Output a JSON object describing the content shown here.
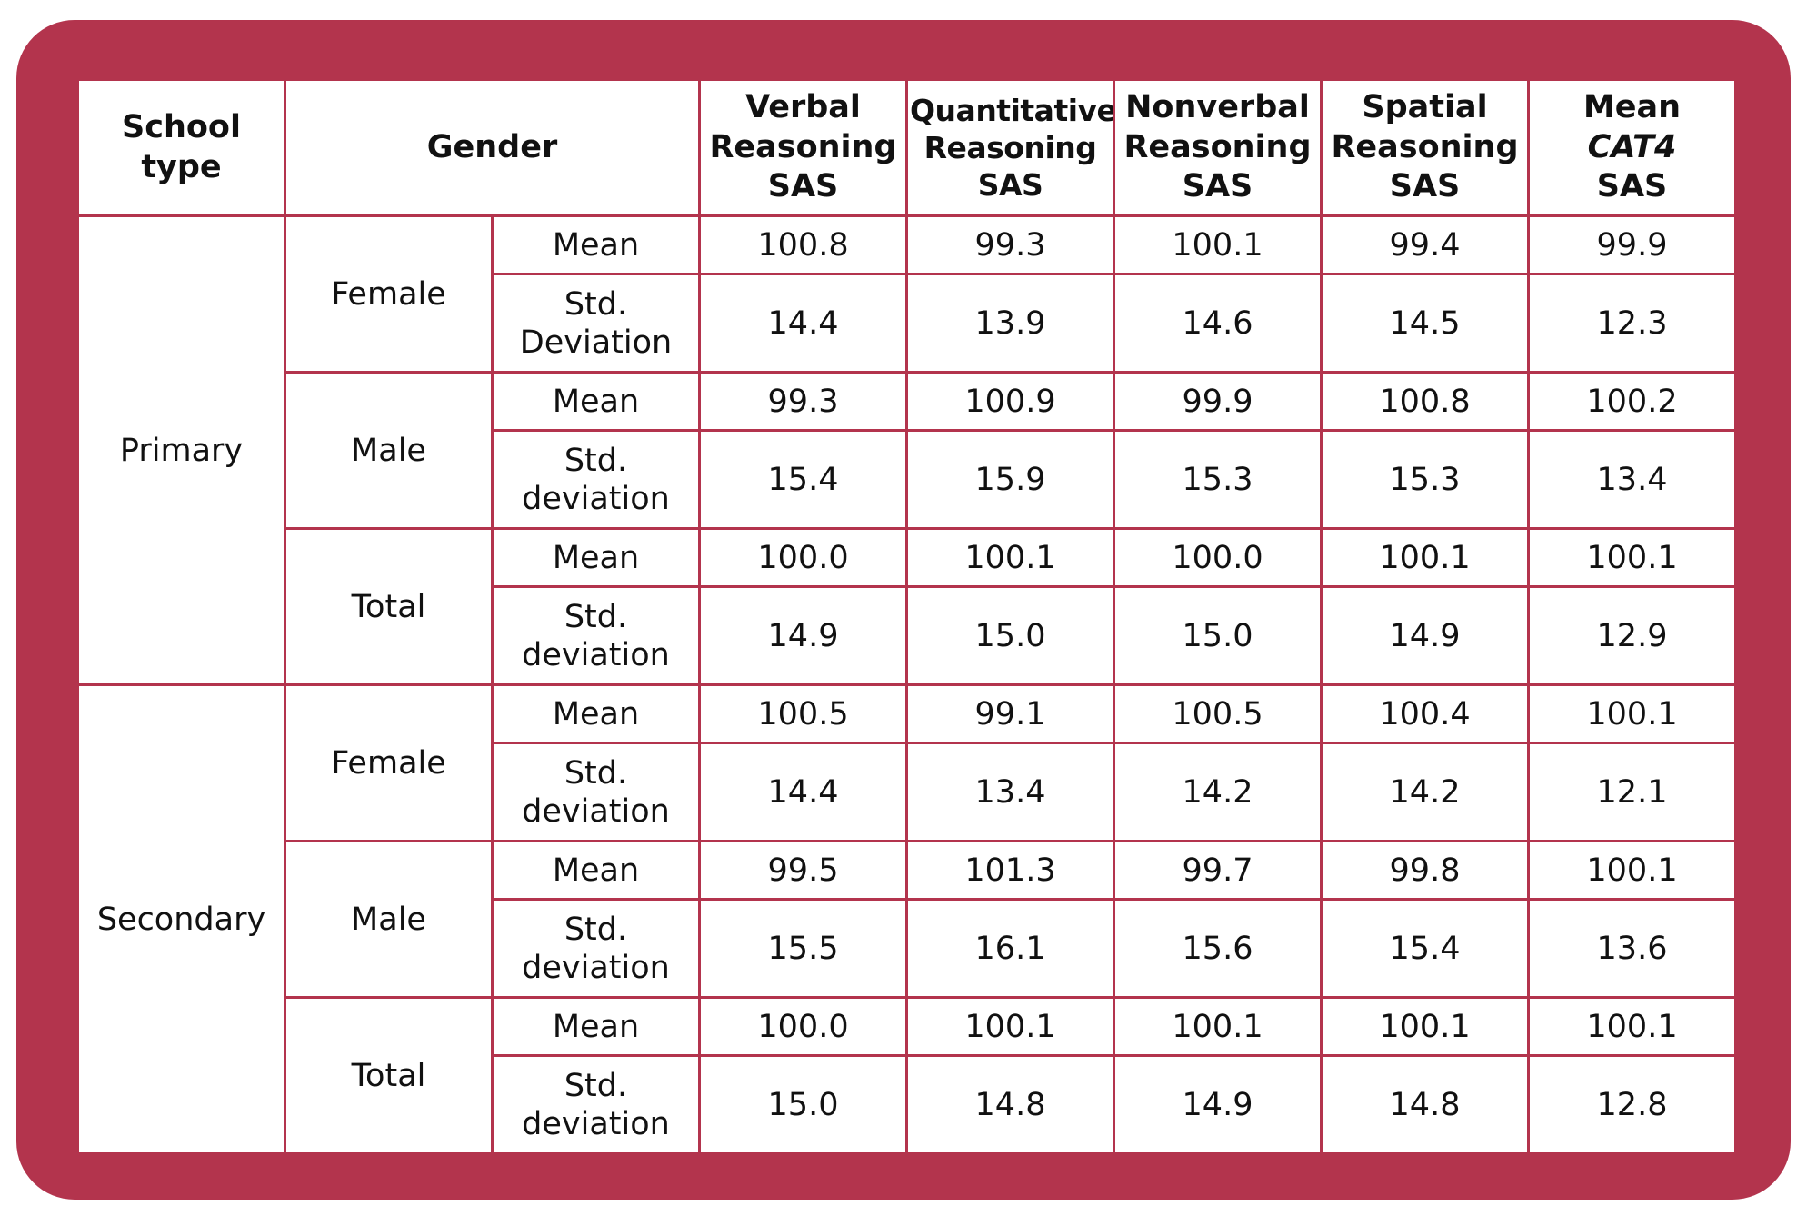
{
  "colors": {
    "frame": "#b3344d",
    "cell_background": "#ffffff",
    "text": "#111111"
  },
  "chart_data": {
    "type": "table",
    "headers": {
      "school_type": [
        "School",
        "type"
      ],
      "gender": "Gender",
      "columns": [
        [
          "Verbal",
          "Reasoning",
          "SAS"
        ],
        [
          "Quantitative",
          "Reasoning",
          "SAS"
        ],
        [
          "Nonverbal",
          "Reasoning",
          "SAS"
        ],
        [
          "Spatial",
          "Reasoning",
          "SAS"
        ],
        [
          "Mean",
          "CAT4",
          "SAS"
        ]
      ]
    },
    "groups": [
      {
        "school_type": "Primary",
        "genders": [
          {
            "gender": "Female",
            "rows": [
              {
                "stat": [
                  "Mean"
                ],
                "values": [
                  "100.8",
                  "99.3",
                  "100.1",
                  "99.4",
                  "99.9"
                ]
              },
              {
                "stat": [
                  "Std.",
                  "Deviation"
                ],
                "values": [
                  "14.4",
                  "13.9",
                  "14.6",
                  "14.5",
                  "12.3"
                ]
              }
            ]
          },
          {
            "gender": "Male",
            "rows": [
              {
                "stat": [
                  "Mean"
                ],
                "values": [
                  "99.3",
                  "100.9",
                  "99.9",
                  "100.8",
                  "100.2"
                ]
              },
              {
                "stat": [
                  "Std.",
                  "deviation"
                ],
                "values": [
                  "15.4",
                  "15.9",
                  "15.3",
                  "15.3",
                  "13.4"
                ]
              }
            ]
          },
          {
            "gender": "Total",
            "rows": [
              {
                "stat": [
                  "Mean"
                ],
                "values": [
                  "100.0",
                  "100.1",
                  "100.0",
                  "100.1",
                  "100.1"
                ]
              },
              {
                "stat": [
                  "Std.",
                  "deviation"
                ],
                "values": [
                  "14.9",
                  "15.0",
                  "15.0",
                  "14.9",
                  "12.9"
                ]
              }
            ]
          }
        ]
      },
      {
        "school_type": "Secondary",
        "genders": [
          {
            "gender": "Female",
            "rows": [
              {
                "stat": [
                  "Mean"
                ],
                "values": [
                  "100.5",
                  "99.1",
                  "100.5",
                  "100.4",
                  "100.1"
                ]
              },
              {
                "stat": [
                  "Std.",
                  "deviation"
                ],
                "values": [
                  "14.4",
                  "13.4",
                  "14.2",
                  "14.2",
                  "12.1"
                ]
              }
            ]
          },
          {
            "gender": "Male",
            "rows": [
              {
                "stat": [
                  "Mean"
                ],
                "values": [
                  "99.5",
                  "101.3",
                  "99.7",
                  "99.8",
                  "100.1"
                ]
              },
              {
                "stat": [
                  "Std.",
                  "deviation"
                ],
                "values": [
                  "15.5",
                  "16.1",
                  "15.6",
                  "15.4",
                  "13.6"
                ]
              }
            ]
          },
          {
            "gender": "Total",
            "rows": [
              {
                "stat": [
                  "Mean"
                ],
                "values": [
                  "100.0",
                  "100.1",
                  "100.1",
                  "100.1",
                  "100.1"
                ]
              },
              {
                "stat": [
                  "Std.",
                  "deviation"
                ],
                "values": [
                  "15.0",
                  "14.8",
                  "14.9",
                  "14.8",
                  "12.8"
                ]
              }
            ]
          }
        ]
      }
    ]
  }
}
